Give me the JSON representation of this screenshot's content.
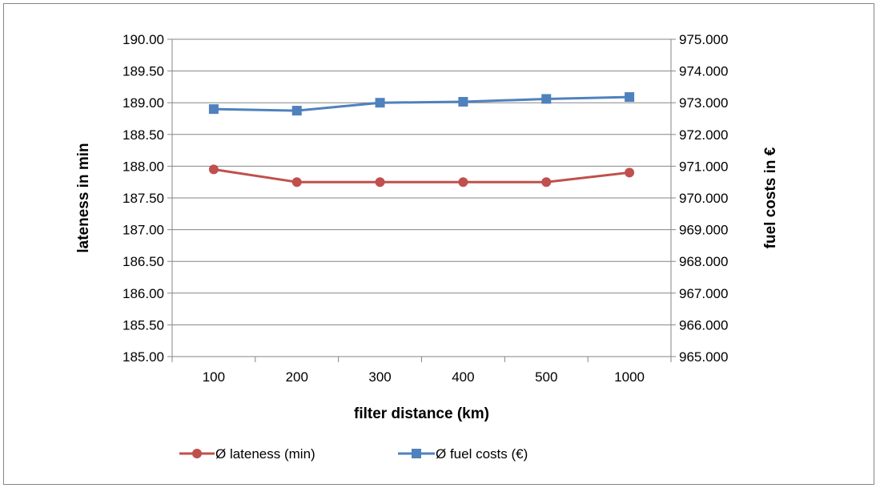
{
  "chart_data": {
    "type": "line",
    "title": "",
    "categories": [
      "100",
      "200",
      "300",
      "400",
      "500",
      "1000"
    ],
    "xlabel": "filter distance (km)",
    "ylabel_left": "lateness in min",
    "ylabel_right": "fuel costs in €",
    "y_left": {
      "range": [
        185.0,
        190.0
      ],
      "ticks": [
        "185.00",
        "185.50",
        "186.00",
        "186.50",
        "187.00",
        "187.50",
        "188.00",
        "188.50",
        "189.00",
        "189.50",
        "190.00"
      ]
    },
    "y_right": {
      "range": [
        965000,
        975000
      ],
      "ticks": [
        "965.000",
        "966.000",
        "967.000",
        "968.000",
        "969.000",
        "970.000",
        "971.000",
        "972.000",
        "973.000",
        "974.000",
        "975.000"
      ]
    },
    "series": [
      {
        "name": "Ø lateness (min)",
        "axis": "left",
        "color": "#c0504d",
        "marker": "circle",
        "values": [
          187.95,
          187.75,
          187.75,
          187.75,
          187.75,
          187.9
        ]
      },
      {
        "name": "Ø fuel costs (€)",
        "axis": "right",
        "color": "#4f81bd",
        "marker": "square",
        "values": [
          972800,
          972750,
          973000,
          973030,
          973120,
          973180
        ]
      }
    ],
    "grid": "horizontal",
    "legend": "bottom"
  }
}
